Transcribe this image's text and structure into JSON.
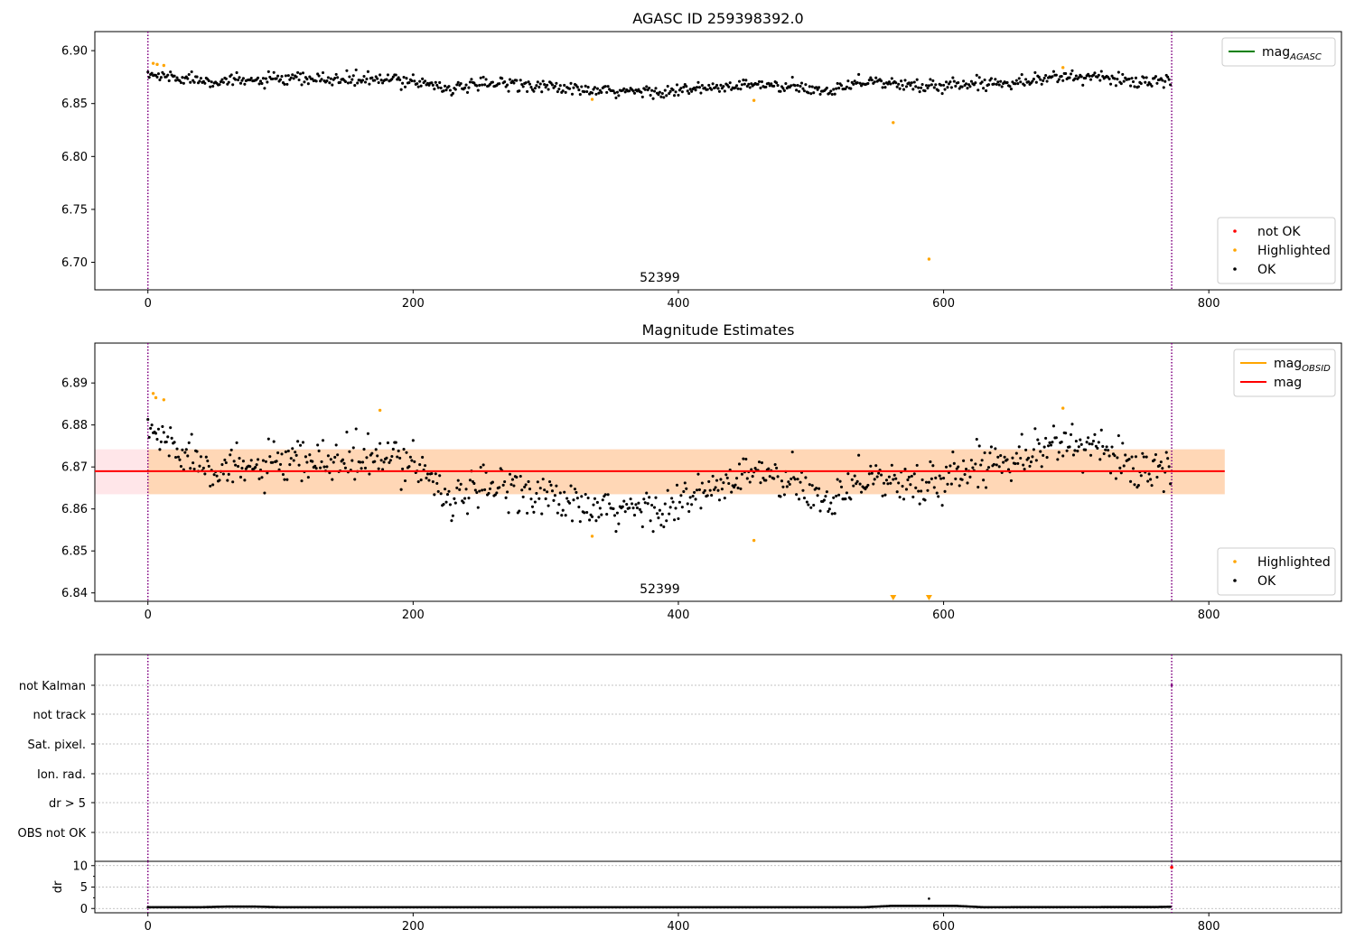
{
  "figure": {
    "title": "AGASC ID 259398392.0",
    "colors": {
      "ok": "#000000",
      "highlighted": "#ffa500",
      "not_ok": "#ff0000",
      "mag_line": "#ff0000",
      "mag_band": "#ffb6c1",
      "mag_obsid": "#ffa500",
      "mag_agasc": "#008000",
      "obs_boundary": "#800080",
      "grid": "#b0b0b0"
    }
  },
  "chart_data": [
    {
      "id": "top",
      "type": "scatter",
      "title": "AGASC ID 259398392.0",
      "xlim": [
        -40,
        900
      ],
      "ylim": [
        6.674,
        6.918
      ],
      "x_ticks": [
        0,
        200,
        400,
        600,
        800
      ],
      "y_ticks": [
        6.7,
        6.75,
        6.8,
        6.85,
        6.9
      ],
      "x_tick_labels": [
        "0",
        "200",
        "400",
        "600",
        "800"
      ],
      "y_tick_labels": [
        "6.70",
        "6.75",
        "6.80",
        "6.85",
        "6.90"
      ],
      "obs_boundaries": [
        0,
        772
      ],
      "obsid_label": "52399",
      "obsid_label_x": 386,
      "ok_series": {
        "name": "OK",
        "n": 772,
        "baseline": 6.869,
        "noise": 0.0055,
        "anchors": [
          [
            0,
            6.877
          ],
          [
            60,
            6.871
          ],
          [
            120,
            6.873
          ],
          [
            200,
            6.872
          ],
          [
            230,
            6.864
          ],
          [
            270,
            6.87
          ],
          [
            340,
            6.861
          ],
          [
            400,
            6.862
          ],
          [
            460,
            6.868
          ],
          [
            510,
            6.862
          ],
          [
            540,
            6.872
          ],
          [
            580,
            6.866
          ],
          [
            640,
            6.87
          ],
          [
            700,
            6.876
          ],
          [
            771,
            6.869
          ]
        ]
      },
      "highlighted": [
        [
          4,
          6.888
        ],
        [
          7,
          6.887
        ],
        [
          12,
          6.886
        ],
        [
          335,
          6.854
        ],
        [
          457,
          6.853
        ],
        [
          562,
          6.832
        ],
        [
          589,
          6.703
        ],
        [
          690,
          6.884
        ]
      ],
      "not_ok": [],
      "legends": [
        {
          "position": "upper right",
          "entries": [
            {
              "label": "mag",
              "sub": "AGASC",
              "kind": "line",
              "color": "#008000"
            }
          ]
        },
        {
          "position": "lower right",
          "entries": [
            {
              "label": "not OK",
              "kind": "dot",
              "color": "#ff0000"
            },
            {
              "label": "Highlighted",
              "kind": "dot",
              "color": "#ffa500"
            },
            {
              "label": "OK",
              "kind": "dot",
              "color": "#000000"
            }
          ]
        }
      ]
    },
    {
      "id": "middle",
      "type": "scatter",
      "title": "Magnitude Estimates",
      "xlim": [
        -40,
        900
      ],
      "ylim": [
        6.838,
        6.8995
      ],
      "x_ticks": [
        0,
        200,
        400,
        600,
        800
      ],
      "y_ticks": [
        6.84,
        6.85,
        6.86,
        6.87,
        6.88,
        6.89
      ],
      "x_tick_labels": [
        "0",
        "200",
        "400",
        "600",
        "800"
      ],
      "y_tick_labels": [
        "6.84",
        "6.85",
        "6.86",
        "6.87",
        "6.88",
        "6.89"
      ],
      "obs_boundaries": [
        0,
        772
      ],
      "obsid_label": "52399",
      "obsid_label_x": 386,
      "mag": 6.869,
      "mag_band": [
        6.8635,
        6.8742
      ],
      "mag_line_x": [
        -40,
        812
      ],
      "obsid_band_x": [
        0,
        812
      ],
      "ok_series": {
        "name": "OK",
        "n": 772,
        "baseline": 6.869,
        "noise": 0.0045,
        "anchors": [
          [
            0,
            6.879
          ],
          [
            30,
            6.873
          ],
          [
            60,
            6.869
          ],
          [
            120,
            6.871
          ],
          [
            200,
            6.872
          ],
          [
            230,
            6.862
          ],
          [
            270,
            6.866
          ],
          [
            340,
            6.859
          ],
          [
            400,
            6.861
          ],
          [
            460,
            6.869
          ],
          [
            510,
            6.862
          ],
          [
            540,
            6.868
          ],
          [
            580,
            6.865
          ],
          [
            640,
            6.872
          ],
          [
            700,
            6.876
          ],
          [
            771,
            6.867
          ]
        ]
      },
      "highlighted": [
        [
          4,
          6.8875
        ],
        [
          6,
          6.8865
        ],
        [
          12,
          6.886
        ],
        [
          175,
          6.8835
        ],
        [
          335,
          6.8535
        ],
        [
          457,
          6.8525
        ],
        [
          690,
          6.884
        ]
      ],
      "below_limits": [
        562,
        589
      ],
      "legends": [
        {
          "position": "upper right",
          "entries": [
            {
              "label": "mag",
              "sub": "OBSID",
              "kind": "line",
              "color": "#ffa500"
            },
            {
              "label": "mag",
              "kind": "line",
              "color": "#ff0000"
            }
          ]
        },
        {
          "position": "lower right",
          "entries": [
            {
              "label": "Highlighted",
              "kind": "dot",
              "color": "#ffa500"
            },
            {
              "label": "OK",
              "kind": "dot",
              "color": "#000000"
            }
          ]
        }
      ]
    },
    {
      "id": "flags",
      "type": "scatter",
      "xlim": [
        -40,
        900
      ],
      "categories": [
        "not Kalman",
        "not track",
        "Sat. pixel.",
        "Ion. rad.",
        "dr > 5",
        "OBS not OK"
      ],
      "obs_boundaries": [
        0,
        772
      ],
      "grid": true
    },
    {
      "id": "dr",
      "type": "scatter",
      "ylabel": "dr",
      "xlim": [
        -40,
        900
      ],
      "ylim": [
        -1,
        11
      ],
      "x_ticks": [
        0,
        200,
        400,
        600,
        800
      ],
      "y_ticks": [
        0,
        5,
        10
      ],
      "x_tick_labels": [
        "0",
        "200",
        "400",
        "600",
        "800"
      ],
      "y_tick_labels": [
        "0",
        "5",
        "10"
      ],
      "obs_boundaries": [
        0,
        772
      ],
      "grid": true,
      "ok_series": {
        "name": "OK",
        "n": 772,
        "anchors": [
          [
            0,
            0.3
          ],
          [
            40,
            0.3
          ],
          [
            60,
            0.45
          ],
          [
            80,
            0.45
          ],
          [
            100,
            0.3
          ],
          [
            540,
            0.3
          ],
          [
            560,
            0.6
          ],
          [
            610,
            0.6
          ],
          [
            630,
            0.3
          ],
          [
            760,
            0.35
          ],
          [
            771,
            0.4
          ]
        ]
      },
      "outliers": [
        [
          589,
          2.3
        ]
      ],
      "not_ok": [
        [
          772,
          9.6
        ]
      ]
    }
  ]
}
